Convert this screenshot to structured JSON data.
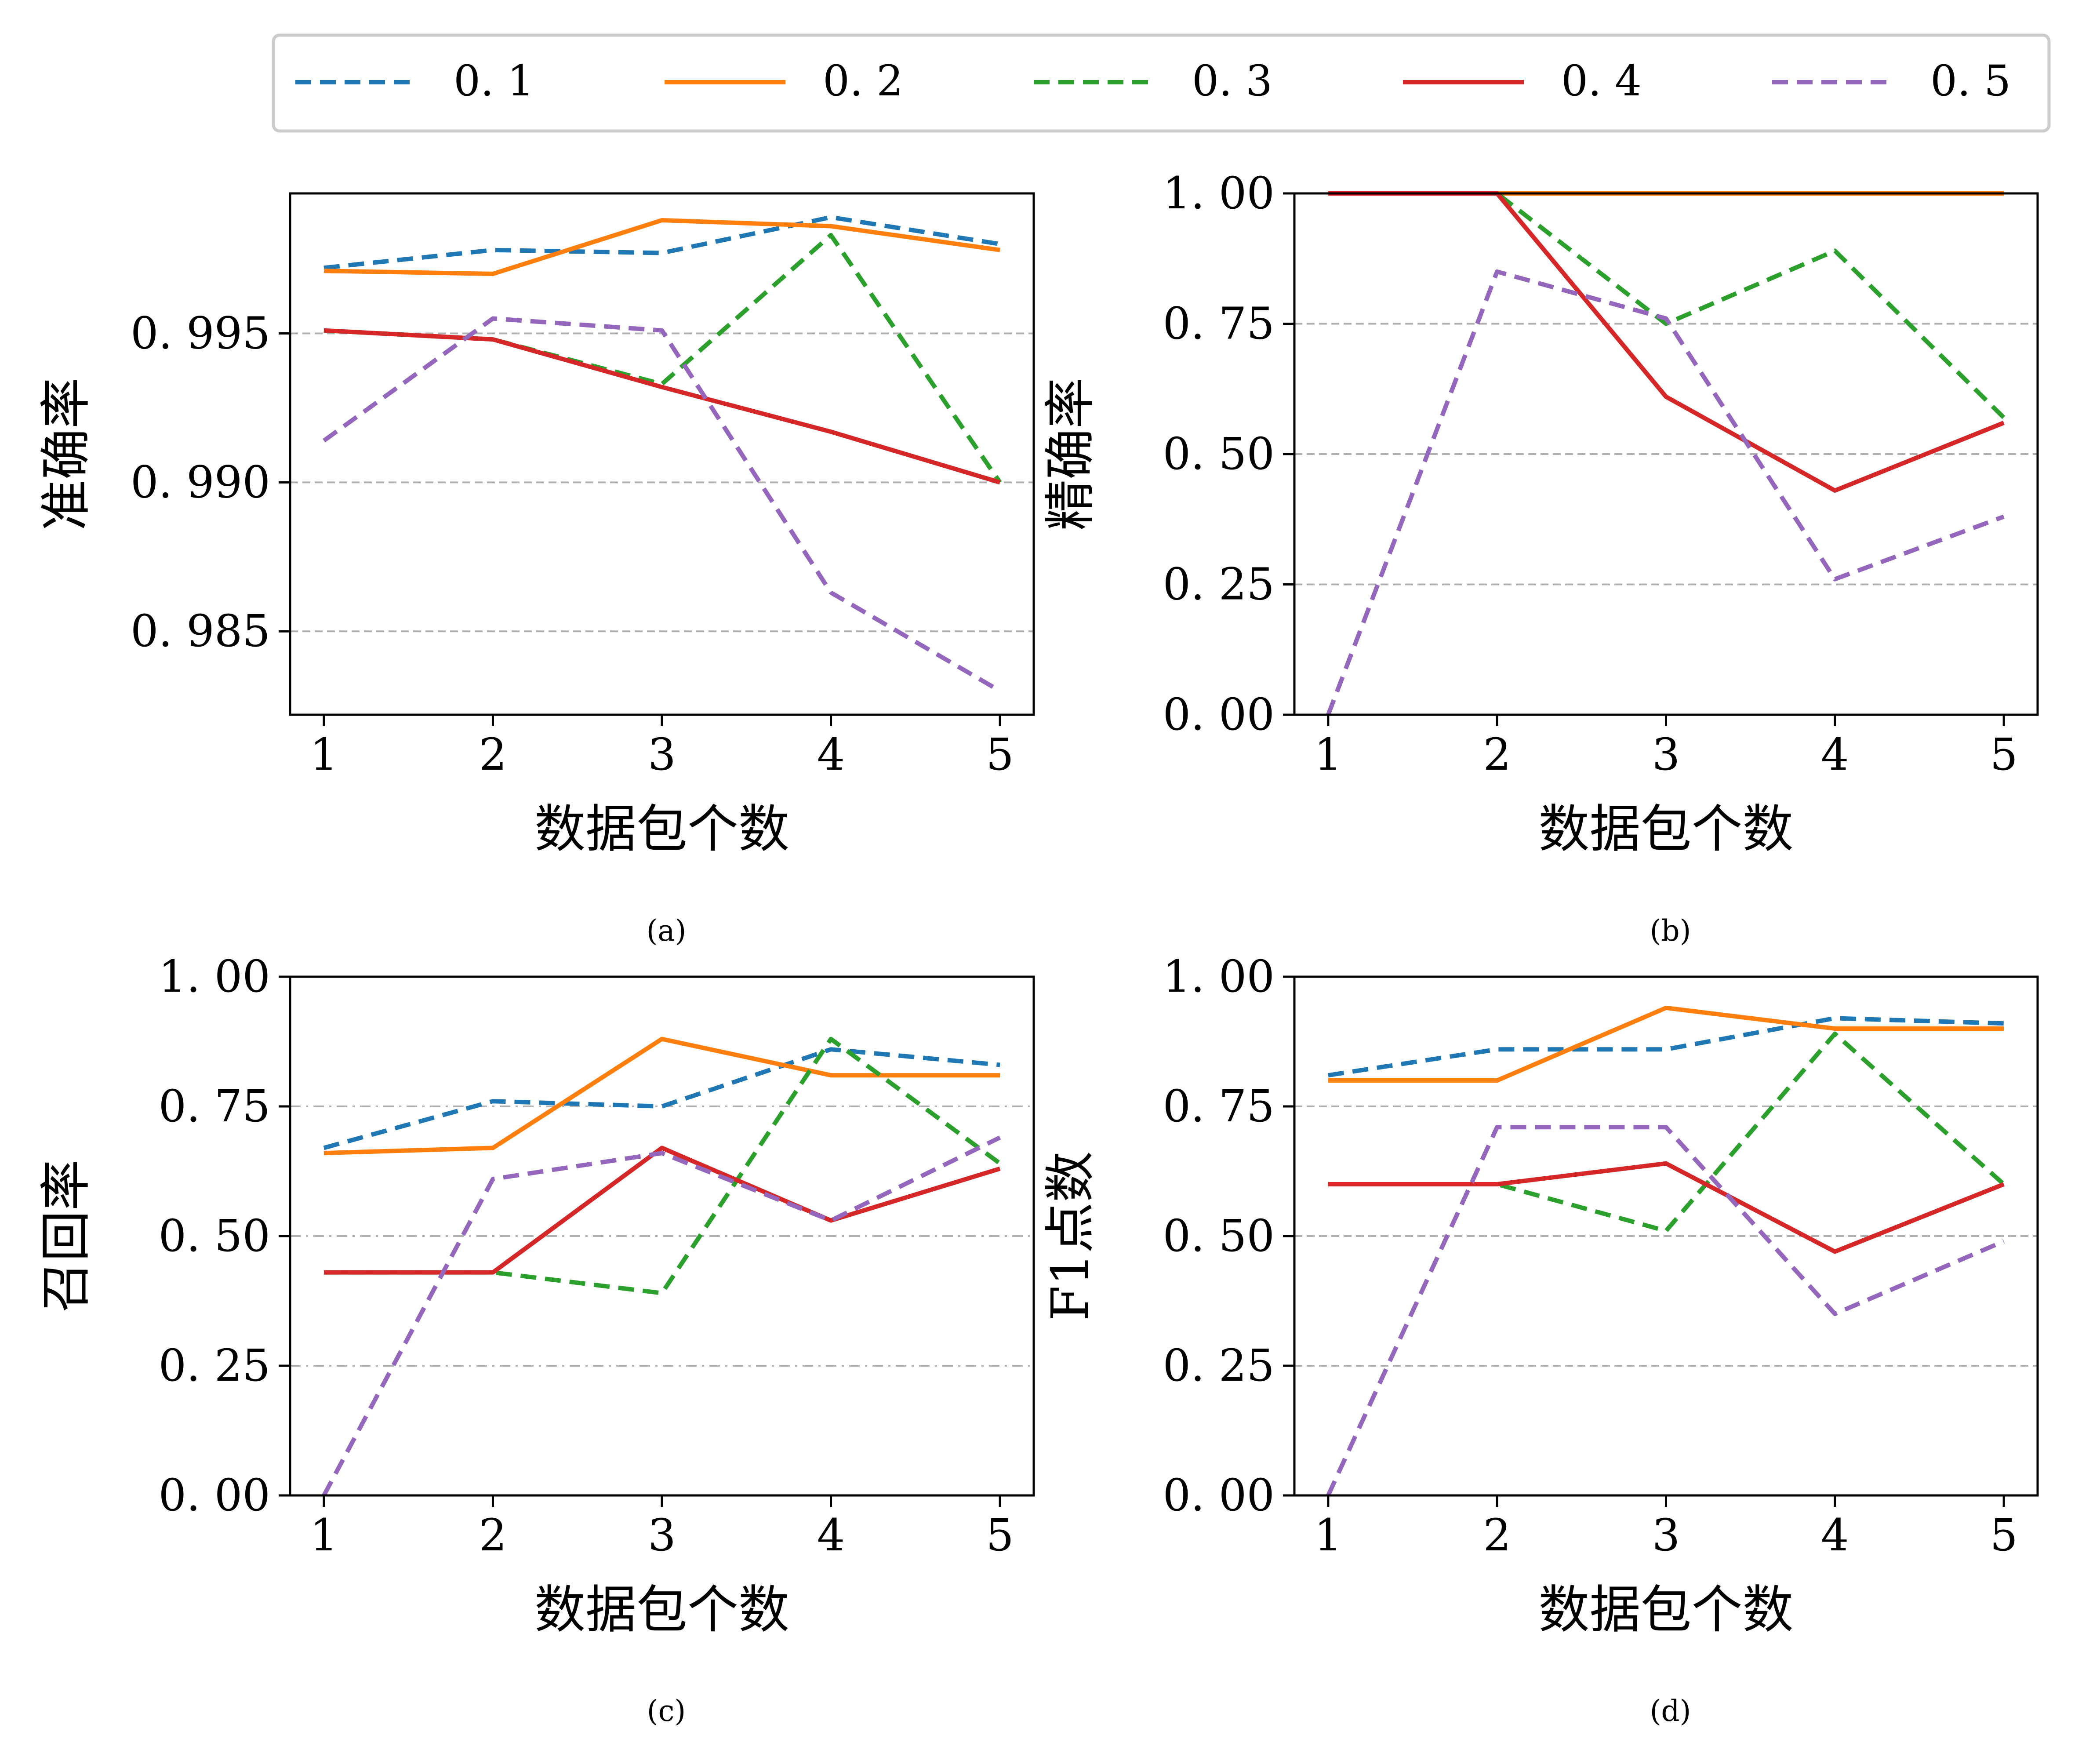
{
  "legend": {
    "placement": "top-center",
    "entries": [
      {
        "label": "0. 1",
        "color": "#1f77b4",
        "style": "dashed"
      },
      {
        "label": "0. 2",
        "color": "#ff7f0e",
        "style": "solid"
      },
      {
        "label": "0. 3",
        "color": "#2ca02c",
        "style": "dashed"
      },
      {
        "label": "0. 4",
        "color": "#d62728",
        "style": "solid"
      },
      {
        "label": "0. 5",
        "color": "#9467bd",
        "style": "dashed"
      }
    ]
  },
  "chart_data": [
    {
      "type": "line",
      "caption": "(a)",
      "xlabel": "数据包个数",
      "ylabel": "准确率",
      "x": [
        1,
        2,
        3,
        4,
        5
      ],
      "xticks": [
        "1",
        "2",
        "3",
        "4",
        "5"
      ],
      "ylim": [
        0.9822,
        0.9997
      ],
      "yticks": [
        0.985,
        0.99,
        0.995
      ],
      "ytick_labels": [
        "0. 985",
        "0. 990",
        "0. 995"
      ],
      "grid": "horizontal dashed",
      "series": [
        {
          "name": "0. 1",
          "values": [
            0.9972,
            0.9978,
            0.9977,
            0.9989,
            0.998
          ]
        },
        {
          "name": "0. 2",
          "values": [
            0.9971,
            0.997,
            0.9988,
            0.9986,
            0.9978
          ]
        },
        {
          "name": "0. 3",
          "values": [
            0.9951,
            0.9948,
            0.9933,
            0.9983,
            0.99
          ]
        },
        {
          "name": "0. 4",
          "values": [
            0.9951,
            0.9948,
            0.9932,
            0.9917,
            0.99
          ]
        },
        {
          "name": "0. 5",
          "values": [
            0.9914,
            0.9955,
            0.9951,
            0.9863,
            0.983
          ]
        }
      ]
    },
    {
      "type": "line",
      "caption": "(b)",
      "xlabel": "数据包个数",
      "ylabel": "精确率",
      "x": [
        1,
        2,
        3,
        4,
        5
      ],
      "xticks": [
        "1",
        "2",
        "3",
        "4",
        "5"
      ],
      "ylim": [
        0,
        1
      ],
      "yticks": [
        0,
        0.25,
        0.5,
        0.75,
        1
      ],
      "ytick_labels": [
        "0. 00",
        "0. 25",
        "0. 50",
        "0. 75",
        "1. 00"
      ],
      "grid": "horizontal dashed",
      "series": [
        {
          "name": "0. 1",
          "values": [
            1.0,
            1.0,
            1.0,
            1.0,
            1.0
          ]
        },
        {
          "name": "0. 2",
          "values": [
            1.0,
            1.0,
            1.0,
            1.0,
            1.0
          ]
        },
        {
          "name": "0. 3",
          "values": [
            1.0,
            1.0,
            0.75,
            0.89,
            0.57
          ]
        },
        {
          "name": "0. 4",
          "values": [
            1.0,
            1.0,
            0.61,
            0.43,
            0.56
          ]
        },
        {
          "name": "0. 5",
          "values": [
            0.0,
            0.85,
            0.76,
            0.26,
            0.38
          ]
        }
      ]
    },
    {
      "type": "line",
      "caption": "(c)",
      "xlabel": "数据包个数",
      "ylabel": "召回率",
      "x": [
        1,
        2,
        3,
        4,
        5
      ],
      "xticks": [
        "1",
        "2",
        "3",
        "4",
        "5"
      ],
      "ylim": [
        0,
        1
      ],
      "yticks": [
        0,
        0.25,
        0.5,
        0.75,
        1
      ],
      "ytick_labels": [
        "0. 00",
        "0. 25",
        "0. 50",
        "0. 75",
        "1. 00"
      ],
      "grid": "horizontal dash-dot",
      "series": [
        {
          "name": "0. 1",
          "values": [
            0.67,
            0.76,
            0.75,
            0.86,
            0.83
          ]
        },
        {
          "name": "0. 2",
          "values": [
            0.66,
            0.67,
            0.88,
            0.81,
            0.81
          ]
        },
        {
          "name": "0. 3",
          "values": [
            0.43,
            0.43,
            0.39,
            0.88,
            0.64
          ]
        },
        {
          "name": "0. 4",
          "values": [
            0.43,
            0.43,
            0.67,
            0.53,
            0.63
          ]
        },
        {
          "name": "0. 5",
          "values": [
            0.0,
            0.61,
            0.66,
            0.53,
            0.69
          ]
        }
      ]
    },
    {
      "type": "line",
      "caption": "(d)",
      "xlabel": "数据包个数",
      "ylabel": "F1点数",
      "x": [
        1,
        2,
        3,
        4,
        5
      ],
      "xticks": [
        "1",
        "2",
        "3",
        "4",
        "5"
      ],
      "ylim": [
        0,
        1
      ],
      "yticks": [
        0,
        0.25,
        0.5,
        0.75,
        1
      ],
      "ytick_labels": [
        "0. 00",
        "0. 25",
        "0. 50",
        "0. 75",
        "1. 00"
      ],
      "grid": "horizontal dashed",
      "series": [
        {
          "name": "0. 1",
          "values": [
            0.81,
            0.86,
            0.86,
            0.92,
            0.91
          ]
        },
        {
          "name": "0. 2",
          "values": [
            0.8,
            0.8,
            0.94,
            0.9,
            0.9
          ]
        },
        {
          "name": "0. 3",
          "values": [
            0.6,
            0.6,
            0.51,
            0.89,
            0.6
          ]
        },
        {
          "name": "0. 4",
          "values": [
            0.6,
            0.6,
            0.64,
            0.47,
            0.6
          ]
        },
        {
          "name": "0. 5",
          "values": [
            0.0,
            0.71,
            0.71,
            0.35,
            0.49
          ]
        }
      ]
    }
  ]
}
